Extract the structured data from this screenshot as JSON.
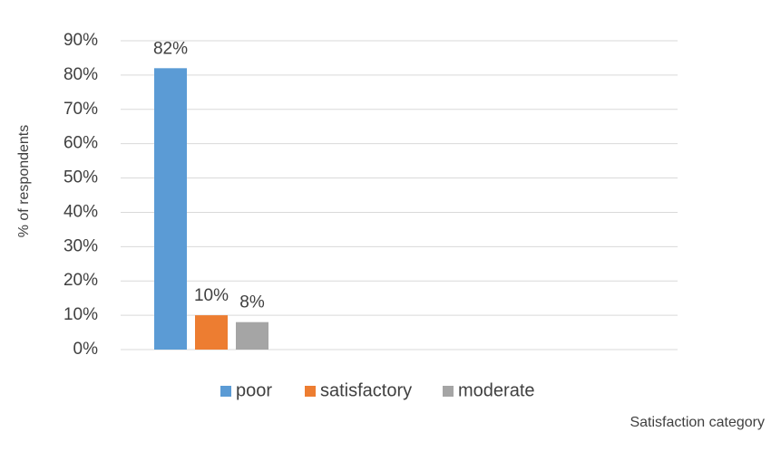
{
  "chart_data": {
    "type": "bar",
    "ylabel": "% of respondents",
    "xlabel": "Satisfaction category",
    "ylim": [
      0,
      90
    ],
    "y_ticks": [
      0,
      10,
      20,
      30,
      40,
      50,
      60,
      70,
      80,
      90
    ],
    "y_tick_labels": [
      "0%",
      "10%",
      "20%",
      "30%",
      "40%",
      "50%",
      "60%",
      "70%",
      "80%",
      "90%"
    ],
    "grid": true,
    "legend_position": "bottom",
    "series": [
      {
        "name": "poor",
        "value": 82,
        "label": "82%",
        "color": "#5B9BD5"
      },
      {
        "name": "satisfactory",
        "value": 10,
        "label": "10%",
        "color": "#ED7D31"
      },
      {
        "name": "moderate",
        "value": 8,
        "label": "8%",
        "color": "#A5A5A5"
      }
    ],
    "gridline_color": "#D9D9D9"
  }
}
